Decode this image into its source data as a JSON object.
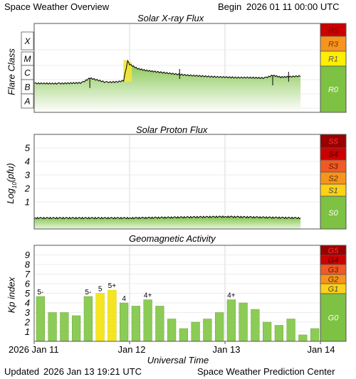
{
  "header": {
    "title": "Space Weather Overview",
    "begin_label": "Begin",
    "begin_value": "2026 01 11 00:00 UTC"
  },
  "footer": {
    "updated_label": "Updated",
    "updated_value": "2026 Jan 13 19:21 UTC",
    "org": "Space Weather Prediction Center"
  },
  "x_axis": {
    "label": "Universal Time",
    "ticks": [
      "2026 Jan 11",
      "Jan 12",
      "Jan 13",
      "Jan 14"
    ]
  },
  "colors": {
    "green": "#7dc242",
    "yellow": "#ffee00",
    "orange": "#f7941d",
    "red_orange": "#f15a24",
    "red": "#cc0000",
    "dark_red": "#990000",
    "flux_gradient_top": "#b5e08a",
    "flux_gradient_bottom": "#ffffff"
  },
  "chart_data": [
    {
      "type": "area",
      "title": "Solar X-ray Flux",
      "ylabel": "Flare Class",
      "y_scale": "log",
      "y_ticks": [
        "A",
        "B",
        "C",
        "M",
        "X"
      ],
      "ylim_class": [
        "A",
        "X10"
      ],
      "x": [
        "2026-01-11 00:00",
        "2026-01-11 06:00",
        "2026-01-11 12:00",
        "2026-01-11 14:00",
        "2026-01-11 18:00",
        "2026-01-11 21:00",
        "2026-01-11 22:30",
        "2026-01-11 23:30",
        "2026-01-12 00:00",
        "2026-01-12 02:00",
        "2026-01-12 04:00",
        "2026-01-12 06:00",
        "2026-01-12 09:00",
        "2026-01-12 12:00",
        "2026-01-12 15:00",
        "2026-01-12 18:00",
        "2026-01-12 21:00",
        "2026-01-13 00:00",
        "2026-01-13 03:00",
        "2026-01-13 06:00",
        "2026-01-13 10:00",
        "2026-01-13 12:00",
        "2026-01-13 14:00",
        "2026-01-13 16:00",
        "2026-01-13 19:00"
      ],
      "y_class": [
        "B5.5",
        "B5.3",
        "B6.0",
        "C1.3",
        "B6.5",
        "B7.0",
        "B8.5",
        "M2.0",
        "M1.2",
        "C6.0",
        "C4.5",
        "C3.8",
        "C3.0",
        "C2.4",
        "C2.0",
        "C1.8",
        "C1.6",
        "C1.5",
        "C1.4",
        "C1.4",
        "C1.3",
        "C2.0",
        "C1.5",
        "C1.6",
        "C1.8"
      ],
      "scale_labels": [
        "R5",
        "R3",
        "R1",
        "R0"
      ]
    },
    {
      "type": "area",
      "title": "Solar Proton Flux",
      "ylabel": "Log10(pfu)",
      "y_ticks": [
        1,
        2,
        3,
        4,
        5
      ],
      "ylim": [
        -1,
        6
      ],
      "x": [
        "2026-01-11 00:00",
        "2026-01-12 00:00",
        "2026-01-13 00:00",
        "2026-01-13 19:00"
      ],
      "y": [
        -0.2,
        -0.2,
        -0.1,
        -0.2
      ],
      "scale_labels": [
        "S5",
        "S4",
        "S3",
        "S2",
        "S1",
        "S0"
      ]
    },
    {
      "type": "bar",
      "title": "Geomagnetic Activity",
      "ylabel": "Kp index",
      "ylim": [
        0,
        10
      ],
      "y_ticks": [
        1,
        2,
        3,
        4,
        5,
        6,
        7,
        8,
        9
      ],
      "values": [
        4.67,
        3.0,
        3.0,
        2.67,
        4.67,
        5.0,
        5.33,
        4.0,
        3.67,
        4.33,
        3.67,
        2.33,
        1.33,
        2.0,
        2.33,
        3.0,
        4.33,
        4.0,
        3.33,
        2.0,
        1.67,
        2.33,
        0.67,
        1.33
      ],
      "bar_labels": [
        "5-",
        "",
        "",
        "",
        "5-",
        "5",
        "5+",
        "4",
        "",
        "4+",
        "",
        "",
        "",
        "",
        "",
        "",
        "4+",
        "",
        "",
        "",
        "",
        "",
        "",
        ""
      ],
      "scale_labels": [
        "G5",
        "G4",
        "G3",
        "G2",
        "G1",
        "G0"
      ]
    }
  ],
  "panels": {
    "xray": {
      "title": "Solar X-ray Flux",
      "ylabel": "Flare Class",
      "class_labels": [
        "X",
        "M",
        "C",
        "B",
        "A"
      ],
      "scale_labels": [
        "R5",
        "R3",
        "R1",
        "R0"
      ]
    },
    "proton": {
      "title": "Solar Proton Flux",
      "ylabel_main": "Log",
      "ylabel_sub": "10",
      "ylabel_tail": "(pfu)",
      "tick_labels": [
        "5",
        "4",
        "3",
        "2",
        "1"
      ],
      "scale_labels": [
        "S5",
        "S4",
        "S3",
        "S2",
        "S1",
        "S0"
      ]
    },
    "geomag": {
      "title": "Geomagnetic Activity",
      "ylabel": "Kp index",
      "tick_labels": [
        "9",
        "8",
        "7",
        "6",
        "5",
        "4",
        "3",
        "2",
        "1"
      ],
      "scale_labels": [
        "G5",
        "G4",
        "G3",
        "G2",
        "G1",
        "G0"
      ]
    }
  }
}
